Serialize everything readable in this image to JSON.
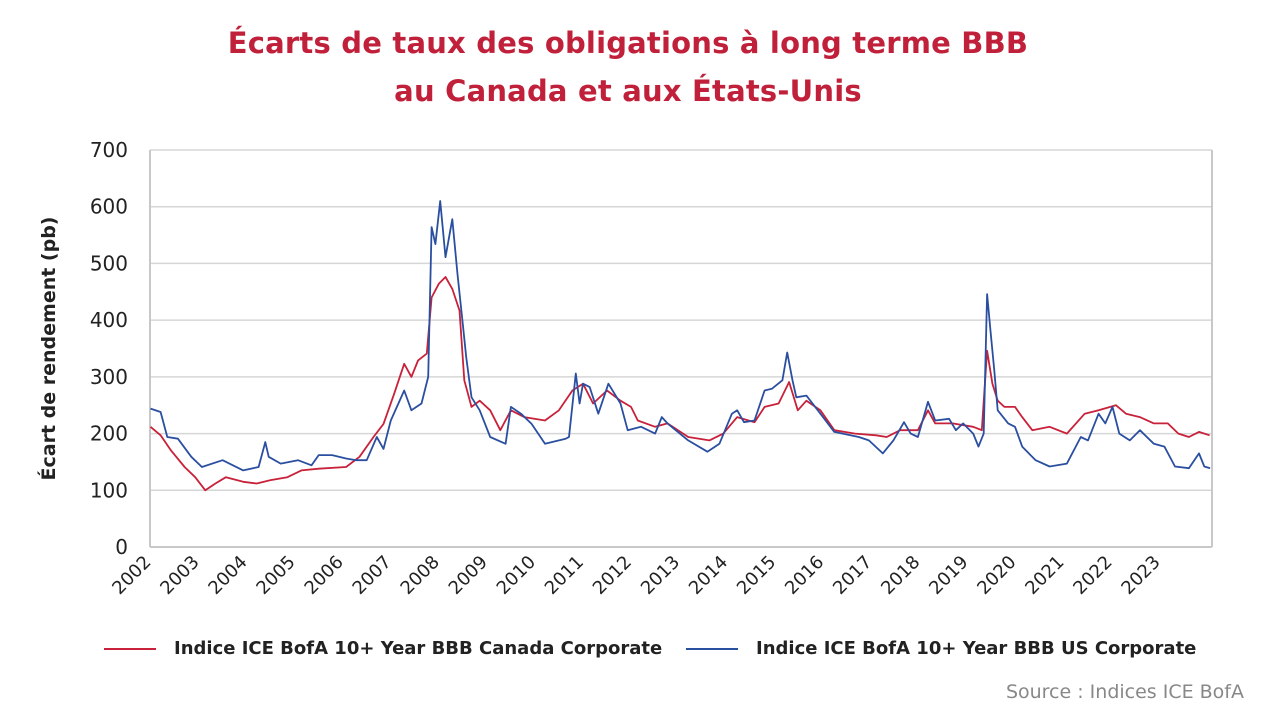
{
  "chart_data": {
    "type": "line",
    "title_line1": "Écarts de taux des obligations à long terme BBB",
    "title_line2": "au Canada et aux États-Unis",
    "xlabel": "",
    "ylabel": "Écart de rendement (pb)",
    "xlim": [
      2002,
      2024.1
    ],
    "ylim": [
      0,
      700
    ],
    "yticks": [
      0,
      100,
      200,
      300,
      400,
      500,
      600,
      700
    ],
    "xticks": [
      "2002",
      "2003",
      "2004",
      "2005",
      "2006",
      "2007",
      "2008",
      "2009",
      "2010",
      "2011",
      "2012",
      "2013",
      "2014",
      "2015",
      "2016",
      "2017",
      "2018",
      "2019",
      "2020",
      "2021",
      "2022",
      "2023"
    ],
    "grid": true,
    "legend_position": "bottom",
    "series": [
      {
        "name": "Indice ICE BofA 10+ Year BBB Canada Corporate",
        "color": "#c8213a",
        "points": [
          [
            2002.01,
            212
          ],
          [
            2002.22,
            197
          ],
          [
            2002.44,
            170
          ],
          [
            2002.72,
            141
          ],
          [
            2002.94,
            123
          ],
          [
            2003.15,
            100
          ],
          [
            2003.36,
            112
          ],
          [
            2003.58,
            123
          ],
          [
            2003.94,
            115
          ],
          [
            2004.22,
            112
          ],
          [
            2004.51,
            118
          ],
          [
            2004.86,
            123
          ],
          [
            2005.15,
            135
          ],
          [
            2005.51,
            138
          ],
          [
            2006.08,
            141
          ],
          [
            2006.36,
            159
          ],
          [
            2006.65,
            194
          ],
          [
            2006.86,
            217
          ],
          [
            2007.08,
            270
          ],
          [
            2007.29,
            323
          ],
          [
            2007.44,
            300
          ],
          [
            2007.58,
            329
          ],
          [
            2007.76,
            341
          ],
          [
            2007.86,
            440
          ],
          [
            2008.01,
            464
          ],
          [
            2008.15,
            476
          ],
          [
            2008.29,
            455
          ],
          [
            2008.44,
            417
          ],
          [
            2008.54,
            294
          ],
          [
            2008.69,
            247
          ],
          [
            2008.86,
            258
          ],
          [
            2009.08,
            241
          ],
          [
            2009.29,
            206
          ],
          [
            2009.51,
            241
          ],
          [
            2009.79,
            229
          ],
          [
            2010.22,
            223
          ],
          [
            2010.51,
            241
          ],
          [
            2010.79,
            276
          ],
          [
            2011.01,
            288
          ],
          [
            2011.22,
            253
          ],
          [
            2011.51,
            276
          ],
          [
            2011.79,
            258
          ],
          [
            2012.01,
            247
          ],
          [
            2012.15,
            223
          ],
          [
            2012.51,
            212
          ],
          [
            2012.77,
            218
          ],
          [
            2013.2,
            194
          ],
          [
            2013.64,
            188
          ],
          [
            2013.93,
            200
          ],
          [
            2014.22,
            229
          ],
          [
            2014.58,
            220
          ],
          [
            2014.79,
            247
          ],
          [
            2015.08,
            253
          ],
          [
            2015.3,
            291
          ],
          [
            2015.48,
            241
          ],
          [
            2015.66,
            258
          ],
          [
            2015.95,
            241
          ],
          [
            2016.24,
            206
          ],
          [
            2016.67,
            200
          ],
          [
            2017.11,
            197
          ],
          [
            2017.33,
            194
          ],
          [
            2017.61,
            206
          ],
          [
            2017.98,
            206
          ],
          [
            2018.19,
            241
          ],
          [
            2018.34,
            218
          ],
          [
            2018.7,
            218
          ],
          [
            2019.13,
            212
          ],
          [
            2019.31,
            206
          ],
          [
            2019.42,
            346
          ],
          [
            2019.53,
            288
          ],
          [
            2019.64,
            258
          ],
          [
            2019.78,
            247
          ],
          [
            2020.0,
            247
          ],
          [
            2020.15,
            229
          ],
          [
            2020.36,
            206
          ],
          [
            2020.72,
            212
          ],
          [
            2021.08,
            200
          ],
          [
            2021.45,
            235
          ],
          [
            2021.74,
            241
          ],
          [
            2022.1,
            250
          ],
          [
            2022.31,
            235
          ],
          [
            2022.6,
            229
          ],
          [
            2022.89,
            218
          ],
          [
            2023.18,
            218
          ],
          [
            2023.4,
            200
          ],
          [
            2023.62,
            194
          ],
          [
            2023.83,
            203
          ],
          [
            2024.05,
            197
          ]
        ]
      },
      {
        "name": "Indice ICE BofA 10+ Year BBB US Corporate",
        "color": "#2b4fa0",
        "points": [
          [
            2002.01,
            244
          ],
          [
            2002.22,
            238
          ],
          [
            2002.36,
            194
          ],
          [
            2002.58,
            191
          ],
          [
            2002.86,
            159
          ],
          [
            2003.08,
            141
          ],
          [
            2003.51,
            153
          ],
          [
            2003.94,
            135
          ],
          [
            2004.26,
            141
          ],
          [
            2004.4,
            185
          ],
          [
            2004.47,
            159
          ],
          [
            2004.72,
            147
          ],
          [
            2005.08,
            153
          ],
          [
            2005.36,
            144
          ],
          [
            2005.51,
            162
          ],
          [
            2005.79,
            162
          ],
          [
            2006.08,
            156
          ],
          [
            2006.29,
            153
          ],
          [
            2006.51,
            153
          ],
          [
            2006.72,
            194
          ],
          [
            2006.86,
            173
          ],
          [
            2007.01,
            223
          ],
          [
            2007.29,
            276
          ],
          [
            2007.44,
            241
          ],
          [
            2007.65,
            253
          ],
          [
            2007.79,
            300
          ],
          [
            2007.86,
            564
          ],
          [
            2007.94,
            534
          ],
          [
            2008.04,
            610
          ],
          [
            2008.15,
            511
          ],
          [
            2008.29,
            578
          ],
          [
            2008.4,
            481
          ],
          [
            2008.51,
            393
          ],
          [
            2008.58,
            335
          ],
          [
            2008.69,
            264
          ],
          [
            2008.86,
            241
          ],
          [
            2009.08,
            194
          ],
          [
            2009.4,
            182
          ],
          [
            2009.51,
            247
          ],
          [
            2009.72,
            235
          ],
          [
            2009.94,
            217
          ],
          [
            2010.22,
            182
          ],
          [
            2010.65,
            191
          ],
          [
            2010.72,
            194
          ],
          [
            2010.86,
            306
          ],
          [
            2010.94,
            253
          ],
          [
            2011.01,
            288
          ],
          [
            2011.15,
            282
          ],
          [
            2011.33,
            235
          ],
          [
            2011.54,
            288
          ],
          [
            2011.79,
            253
          ],
          [
            2011.94,
            206
          ],
          [
            2012.22,
            212
          ],
          [
            2012.51,
            200
          ],
          [
            2012.65,
            229
          ],
          [
            2012.77,
            218
          ],
          [
            2013.2,
            188
          ],
          [
            2013.6,
            168
          ],
          [
            2013.85,
            182
          ],
          [
            2014.11,
            235
          ],
          [
            2014.22,
            241
          ],
          [
            2014.36,
            220
          ],
          [
            2014.58,
            223
          ],
          [
            2014.79,
            276
          ],
          [
            2014.94,
            279
          ],
          [
            2015.16,
            294
          ],
          [
            2015.26,
            343
          ],
          [
            2015.37,
            294
          ],
          [
            2015.45,
            264
          ],
          [
            2015.66,
            267
          ],
          [
            2015.95,
            235
          ],
          [
            2016.24,
            203
          ],
          [
            2016.75,
            194
          ],
          [
            2016.96,
            188
          ],
          [
            2017.25,
            165
          ],
          [
            2017.47,
            188
          ],
          [
            2017.69,
            220
          ],
          [
            2017.83,
            200
          ],
          [
            2017.98,
            194
          ],
          [
            2018.19,
            256
          ],
          [
            2018.34,
            223
          ],
          [
            2018.63,
            226
          ],
          [
            2018.77,
            206
          ],
          [
            2018.92,
            218
          ],
          [
            2019.13,
            200
          ],
          [
            2019.24,
            177
          ],
          [
            2019.35,
            200
          ],
          [
            2019.42,
            446
          ],
          [
            2019.49,
            381
          ],
          [
            2019.57,
            311
          ],
          [
            2019.64,
            241
          ],
          [
            2019.86,
            218
          ],
          [
            2020.0,
            212
          ],
          [
            2020.15,
            177
          ],
          [
            2020.43,
            153
          ],
          [
            2020.72,
            142
          ],
          [
            2021.08,
            147
          ],
          [
            2021.37,
            194
          ],
          [
            2021.52,
            188
          ],
          [
            2021.74,
            235
          ],
          [
            2021.88,
            218
          ],
          [
            2022.03,
            247
          ],
          [
            2022.17,
            200
          ],
          [
            2022.39,
            188
          ],
          [
            2022.6,
            206
          ],
          [
            2022.89,
            182
          ],
          [
            2023.11,
            177
          ],
          [
            2023.33,
            142
          ],
          [
            2023.62,
            139
          ],
          [
            2023.83,
            165
          ],
          [
            2023.94,
            142
          ],
          [
            2024.06,
            139
          ]
        ]
      }
    ],
    "source": "Source : Indices ICE BofA"
  }
}
